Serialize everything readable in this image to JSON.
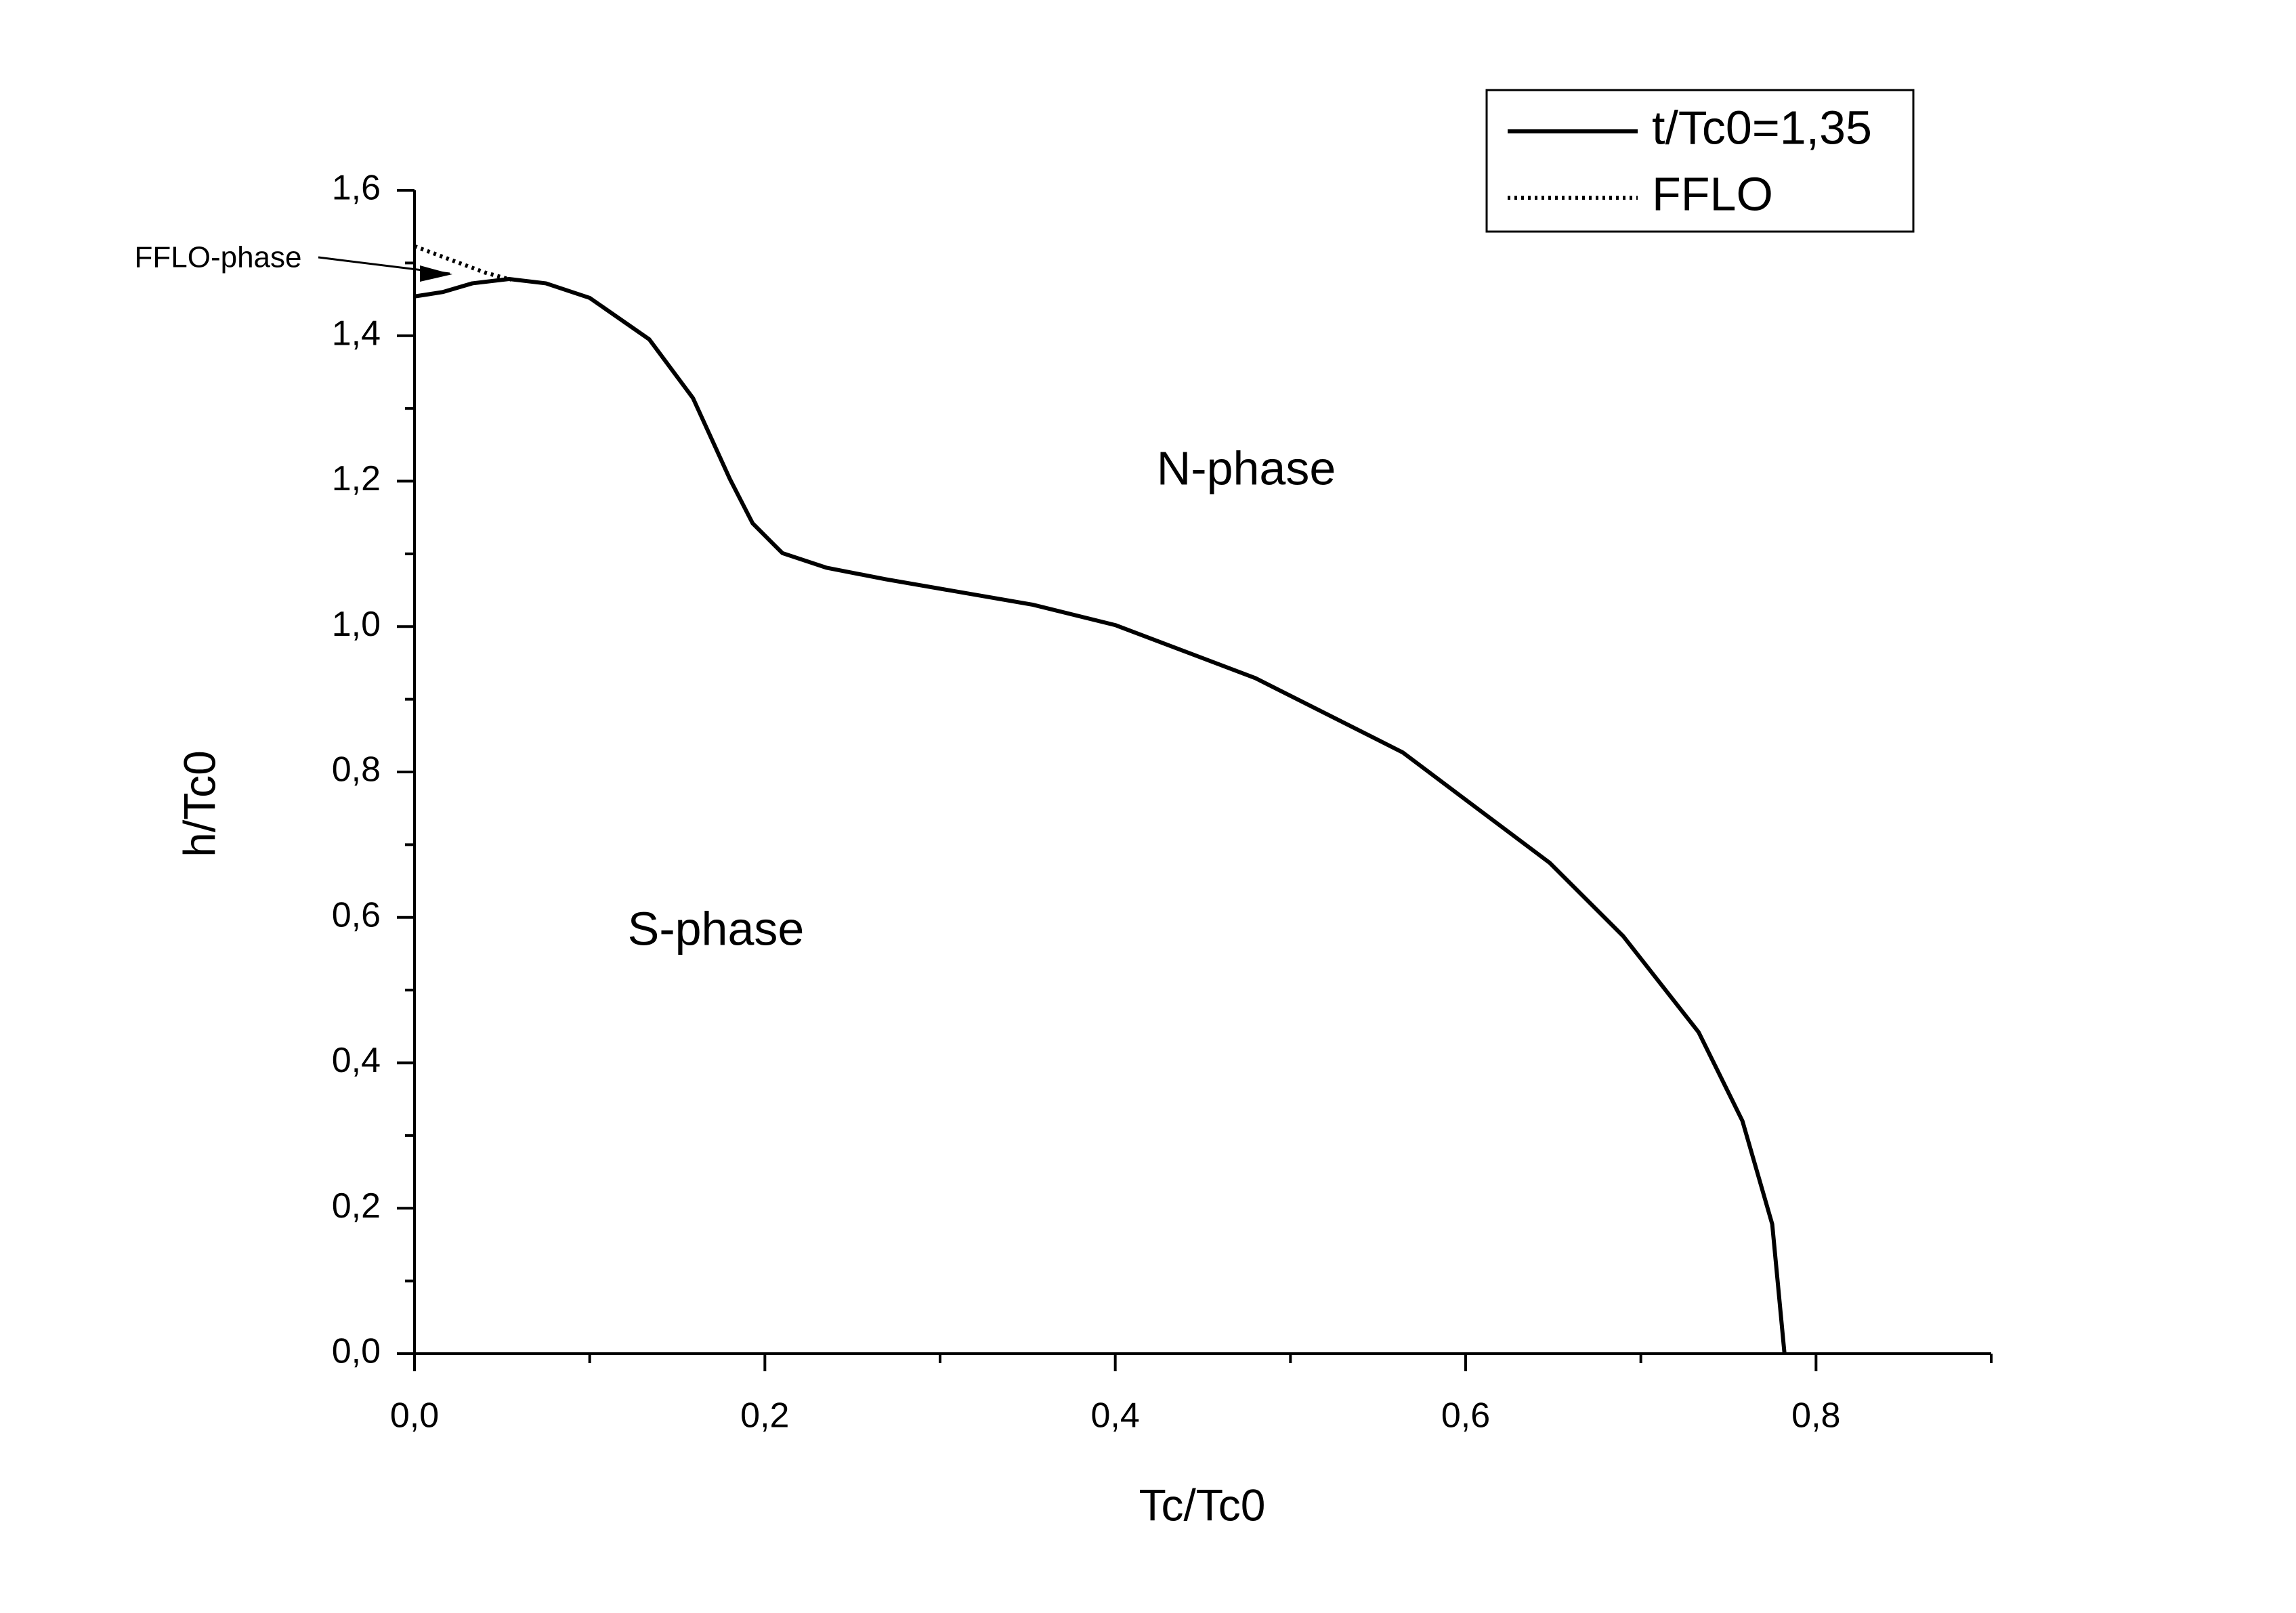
{
  "chart_data": {
    "type": "line",
    "x_label": "Tc/Tc0",
    "y_label": "h/Tc0",
    "xlim": [
      0,
      0.9
    ],
    "ylim": [
      0,
      1.6
    ],
    "xticks": [
      {
        "value": 0,
        "label": "0,0"
      },
      {
        "value": 0.2,
        "label": "0,2"
      },
      {
        "value": 0.4,
        "label": "0,4"
      },
      {
        "value": 0.6,
        "label": "0,6"
      },
      {
        "value": 0.8,
        "label": "0,8"
      }
    ],
    "yticks": [
      {
        "value": 0,
        "label": "0,0"
      },
      {
        "value": 0.2,
        "label": "0,2"
      },
      {
        "value": 0.4,
        "label": "0,4"
      },
      {
        "value": 0.6,
        "label": "0,6"
      },
      {
        "value": 0.8,
        "label": "0,8"
      },
      {
        "value": 1.0,
        "label": "1,0"
      },
      {
        "value": 1.2,
        "label": "1,2"
      },
      {
        "value": 1.4,
        "label": "1,4"
      },
      {
        "value": 1.6,
        "label": "1,6"
      }
    ],
    "xminorticks": [
      0.1,
      0.3,
      0.5,
      0.7,
      0.9
    ],
    "yminorticks": [
      0.1,
      0.3,
      0.5,
      0.7,
      0.9,
      1.1,
      1.3,
      1.5
    ],
    "legend": "upper right",
    "series": [
      {
        "name": "t/Tc0=1,35",
        "color": "#000000",
        "style": "solid",
        "x": [
          0,
          0.016,
          0.033,
          0.054,
          0.075,
          0.1,
          0.134,
          0.159,
          0.18,
          0.193,
          0.21,
          0.235,
          0.269,
          0.353,
          0.4,
          0.48,
          0.564,
          0.648,
          0.69,
          0.733,
          0.758,
          0.775,
          0.782
        ],
        "values": [
          1.454,
          1.46,
          1.472,
          1.478,
          1.472,
          1.452,
          1.395,
          1.314,
          1.203,
          1.142,
          1.101,
          1.081,
          1.065,
          1.03,
          1.002,
          0.929,
          0.827,
          0.675,
          0.574,
          0.442,
          0.32,
          0.178,
          0
        ]
      },
      {
        "name": "FFLO",
        "color": "#000000",
        "style": "dotted",
        "x": [
          0,
          0.02,
          0.04,
          0.055
        ],
        "values": [
          1.523,
          1.505,
          1.487,
          1.477
        ]
      }
    ],
    "annotations": [
      "N-phase",
      "S-phase",
      "FFLO-phase"
    ]
  }
}
